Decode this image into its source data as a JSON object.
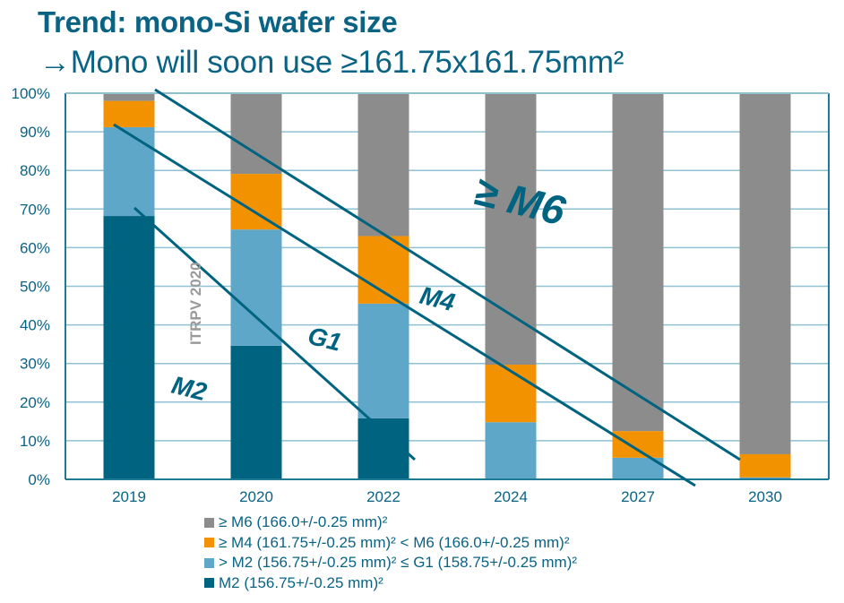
{
  "slide": {
    "title": "Trend: mono-Si wafer size",
    "subtitle": "→Mono will soon use ≥161.75x161.75mm²"
  },
  "chart_data": {
    "type": "bar",
    "stacked": true,
    "categories": [
      "2019",
      "2020",
      "2022",
      "2024",
      "2027",
      "2030"
    ],
    "ylim": [
      0,
      100
    ],
    "yticks": [
      "0%",
      "10%",
      "20%",
      "30%",
      "40%",
      "50%",
      "60%",
      "70%",
      "80%",
      "90%",
      "100%"
    ],
    "grid": true,
    "legend_position": "bottom",
    "series": [
      {
        "name": "M2 (156.75+/-0.25 mm)²",
        "color": "#00637f",
        "values": [
          68.2,
          34.6,
          15.8,
          0,
          0,
          0
        ]
      },
      {
        "name": "> M2 (156.75+/-0.25 mm)² ≤ G1 (158.75+/-0.25 mm)²",
        "color": "#5ea7c9",
        "values": [
          23.0,
          30.1,
          29.7,
          14.8,
          5.6,
          0.5
        ]
      },
      {
        "name": "≥ M4 (161.75+/-0.25 mm)² < M6 (166.0+/-0.25 mm)²",
        "color": "#f39200",
        "values": [
          6.8,
          14.4,
          17.5,
          14.9,
          6.9,
          6.0
        ]
      },
      {
        "name": "≥ M6 (166.0+/-0.25 mm)²",
        "color": "#8c8c8c",
        "values": [
          2.0,
          20.9,
          37.0,
          70.3,
          87.5,
          93.5
        ]
      }
    ],
    "legend_order": [
      3,
      2,
      1,
      0
    ],
    "annotations": {
      "watermark": "ITRPV 2020",
      "labels": [
        "M2",
        "G1",
        "M4",
        "≥ M6"
      ]
    },
    "title": "",
    "xlabel": "",
    "ylabel": ""
  }
}
